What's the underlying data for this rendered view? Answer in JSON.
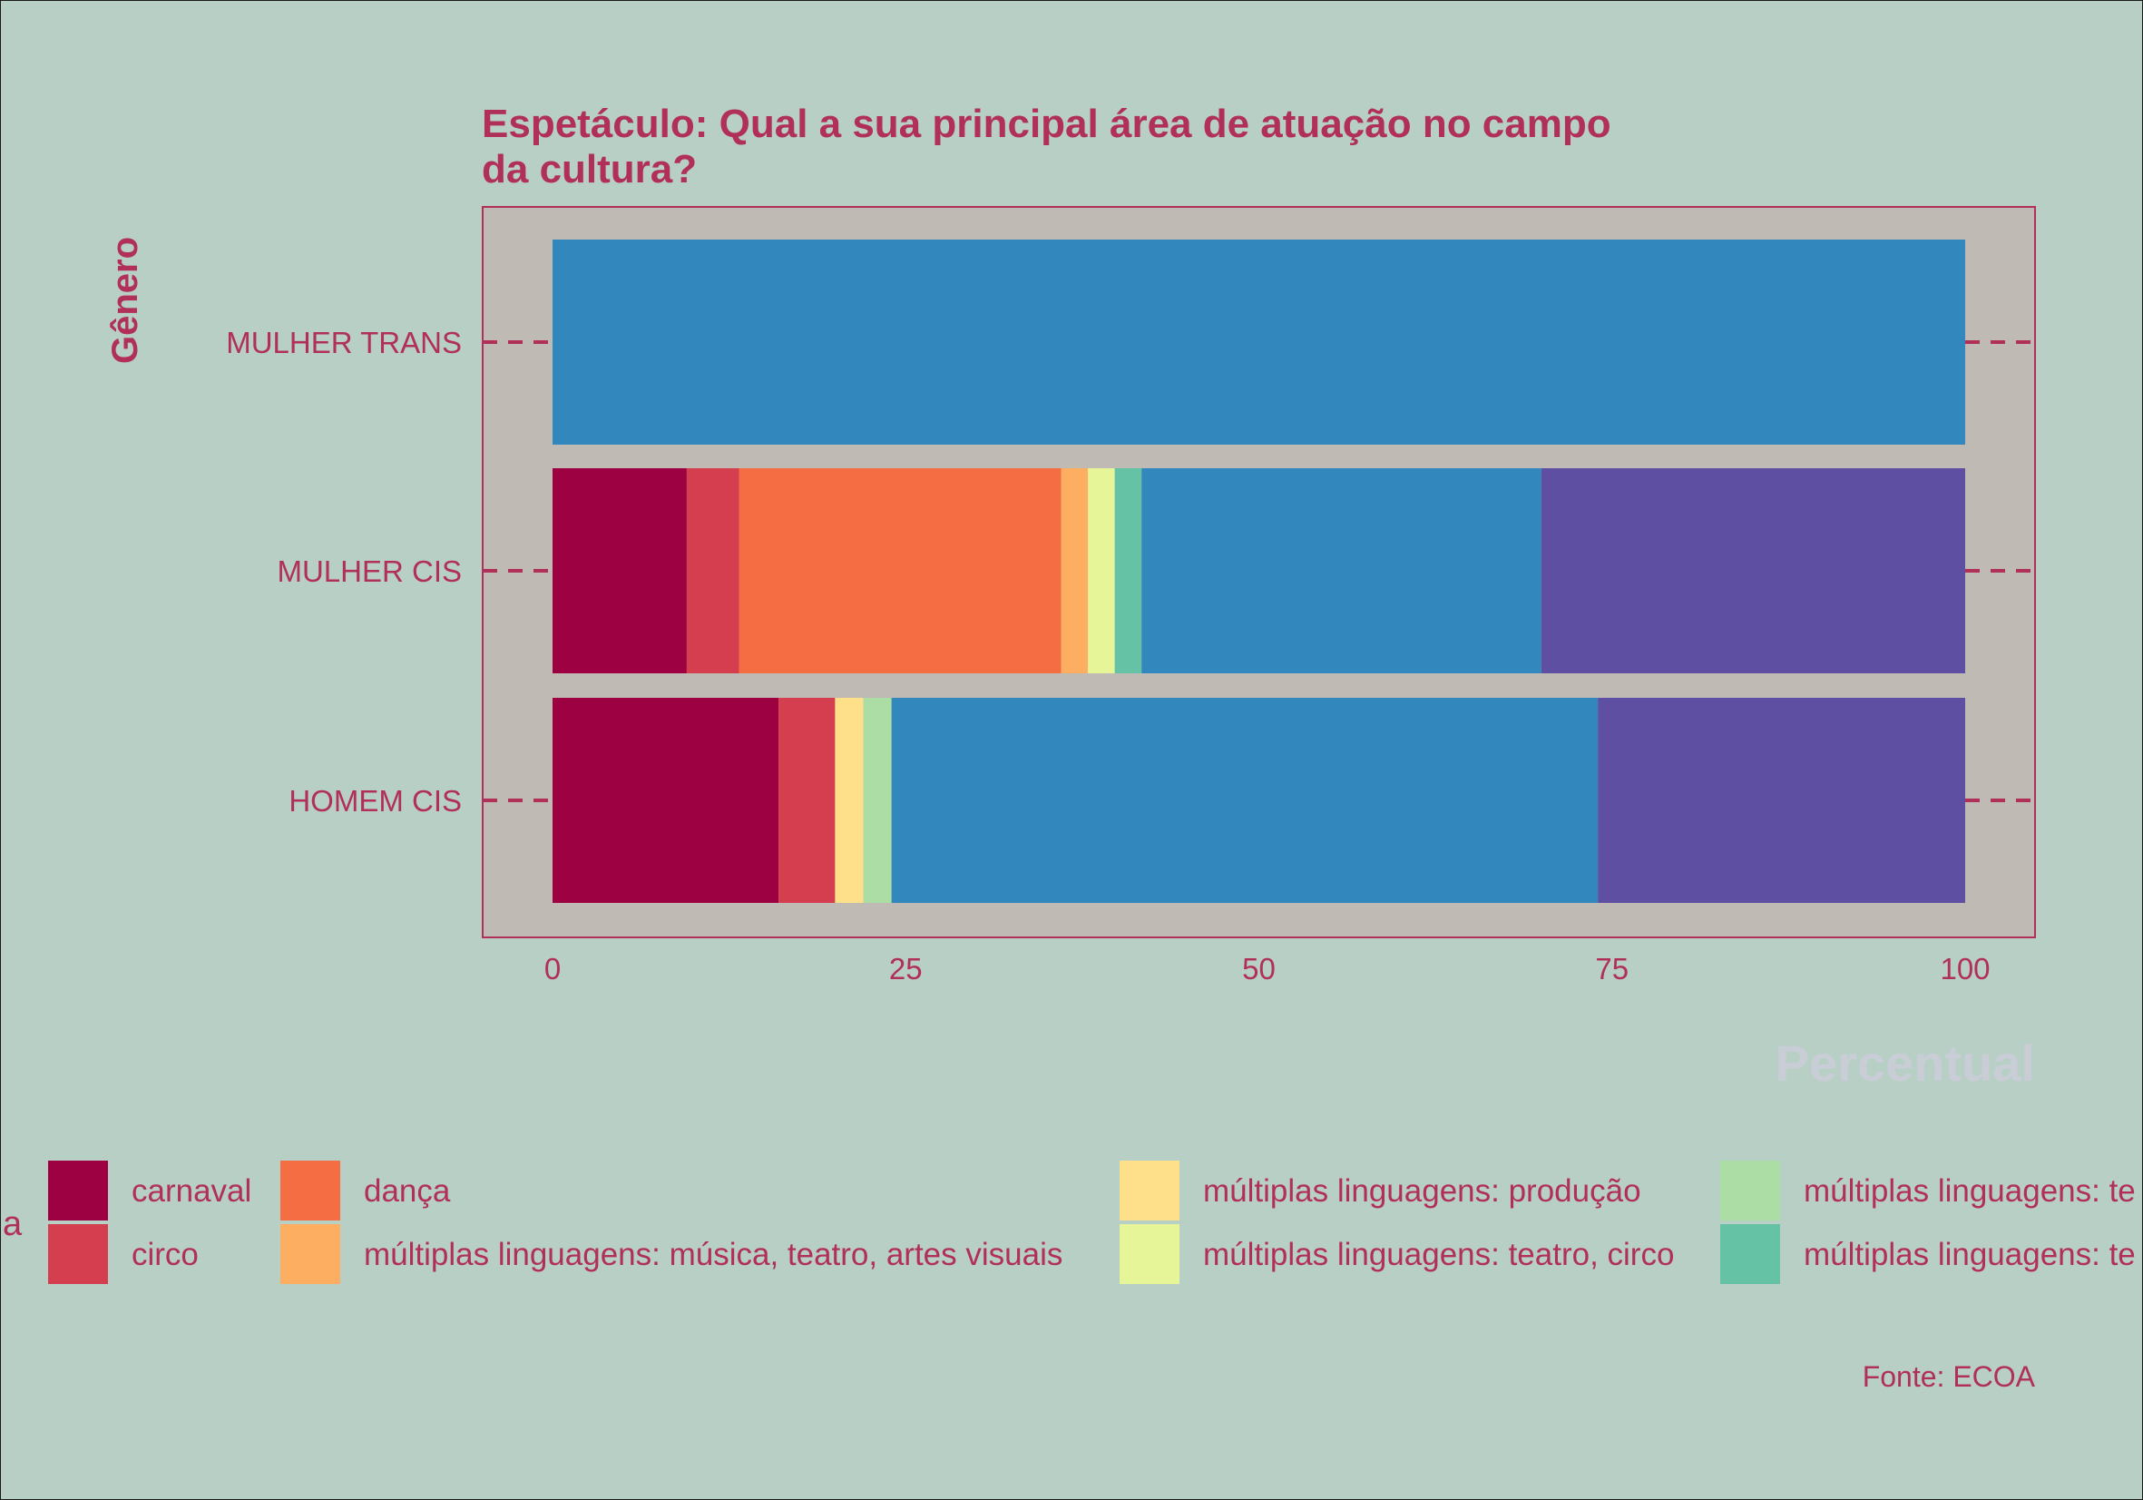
{
  "chart_data": {
    "type": "bar",
    "orientation": "horizontal",
    "stacked": true,
    "title": "Espetáculo: Qual a sua principal área de atuação no campo da cultura?",
    "title_lines": [
      "Espetáculo: Qual a sua principal área de atuação no campo",
      "da cultura?"
    ],
    "ylabel": "Gênero",
    "xlabel": "Percentual",
    "caption": "Fonte: ECOA",
    "legend_title_fragment": "a",
    "xlim": [
      0,
      100
    ],
    "xticks": [
      "0",
      "25",
      "50",
      "75",
      "100"
    ],
    "categories": [
      "MULHER TRANS",
      "MULHER CIS",
      "HOMEM CIS"
    ],
    "legend_position": "bottom",
    "grid": false,
    "series": [
      {
        "name": "carnaval",
        "color": "#9e0142",
        "values": [
          0,
          9.5,
          16
        ]
      },
      {
        "name": "circo",
        "color": "#d53e4f",
        "values": [
          0,
          3.7,
          4
        ]
      },
      {
        "name": "dança",
        "color": "#f46d43",
        "values": [
          0,
          22.8,
          0
        ]
      },
      {
        "name": "múltiplas linguagens: música, teatro, artes visuais",
        "color": "#fdae61",
        "values": [
          0,
          1.9,
          0
        ]
      },
      {
        "name": "múltiplas linguagens: produção",
        "color": "#fee08b",
        "values": [
          0,
          0,
          2
        ]
      },
      {
        "name": "múltiplas linguagens: teatro, circo",
        "color": "#e6f598",
        "values": [
          0,
          1.9,
          0
        ]
      },
      {
        "name": "múltiplas linguagens: te",
        "color": "#abdda4",
        "values": [
          0,
          0,
          2
        ]
      },
      {
        "name": "múltiplas linguagens: te",
        "color": "#66c2a5",
        "values": [
          0,
          1.9,
          0
        ]
      },
      {
        "name": "",
        "color": "#3288bd",
        "values": [
          100,
          28.3,
          50
        ]
      },
      {
        "name": "",
        "color": "#5e4fa2",
        "values": [
          0,
          30,
          26
        ]
      }
    ]
  },
  "colors": {
    "background": "#b8cfc6",
    "panel": "#bfbab4",
    "text": "#b0305a"
  }
}
